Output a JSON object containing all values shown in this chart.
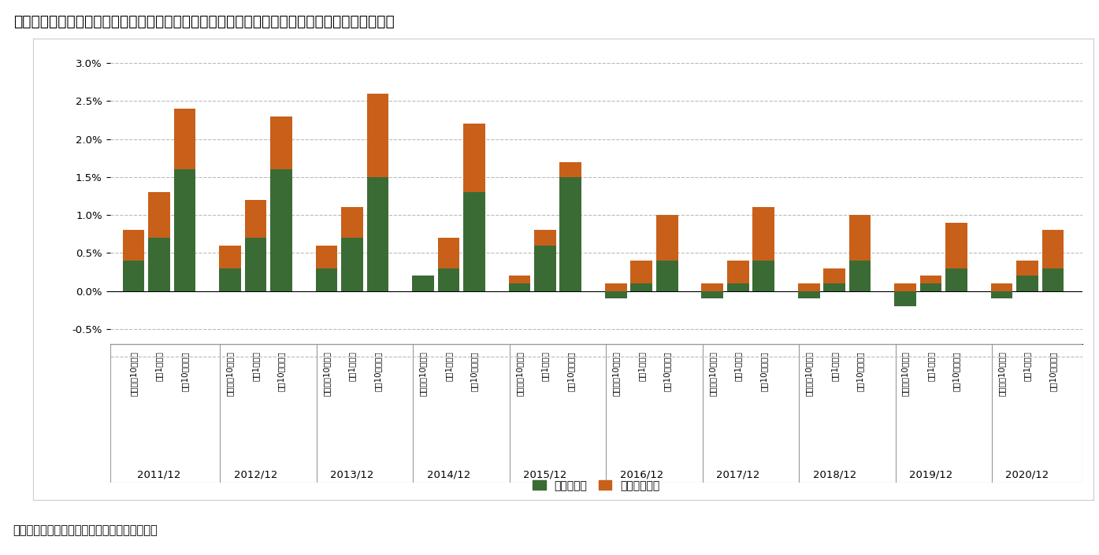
{
  "title": "図表２：日本国債の期待収益率の最終利回りとロールダウンへの分解（過去１０年間の年末値）",
  "subtitle": "（財務省、日本証券業協会のデータから推計）",
  "years": [
    "2011/12",
    "2012/12",
    "2013/12",
    "2014/12",
    "2015/12",
    "2016/12",
    "2017/12",
    "2018/12",
    "2019/12",
    "2020/12"
  ],
  "categories": [
    "残存１～10年のみ",
    "残存1年以上",
    "残存10年超のみ"
  ],
  "legend_labels": [
    "最終利回り",
    "ロールダウン"
  ],
  "green_color": "#3a6b35",
  "orange_color": "#c8601a",
  "yticks": [
    -0.005,
    0.0,
    0.005,
    0.01,
    0.015,
    0.02,
    0.025,
    0.03
  ],
  "ytick_labels": [
    "-0.5%",
    "0.0%",
    "0.5%",
    "1.0%",
    "1.5%",
    "2.0%",
    "2.5%",
    "3.0%"
  ],
  "ylim": [
    -0.007,
    0.031
  ],
  "green_values": [
    [
      0.004,
      0.007,
      0.016
    ],
    [
      0.003,
      0.007,
      0.016
    ],
    [
      0.003,
      0.007,
      0.015
    ],
    [
      0.002,
      0.003,
      0.013
    ],
    [
      0.001,
      0.006,
      0.015
    ],
    [
      -0.001,
      0.001,
      0.004
    ],
    [
      -0.001,
      0.001,
      0.004
    ],
    [
      -0.001,
      0.001,
      0.004
    ],
    [
      -0.002,
      0.001,
      0.003
    ],
    [
      -0.001,
      0.002,
      0.003
    ]
  ],
  "orange_values": [
    [
      0.004,
      0.006,
      0.008
    ],
    [
      0.003,
      0.005,
      0.007
    ],
    [
      0.003,
      0.004,
      0.011
    ],
    [
      0.0,
      0.004,
      0.009
    ],
    [
      0.001,
      0.002,
      0.002
    ],
    [
      0.001,
      0.003,
      0.006
    ],
    [
      0.001,
      0.003,
      0.007
    ],
    [
      0.001,
      0.002,
      0.006
    ],
    [
      0.001,
      0.001,
      0.006
    ],
    [
      0.001,
      0.002,
      0.005
    ]
  ],
  "background_color": "#ffffff",
  "grid_color": "#aaaaaa",
  "chart_bg_color": "#f5f5f5"
}
